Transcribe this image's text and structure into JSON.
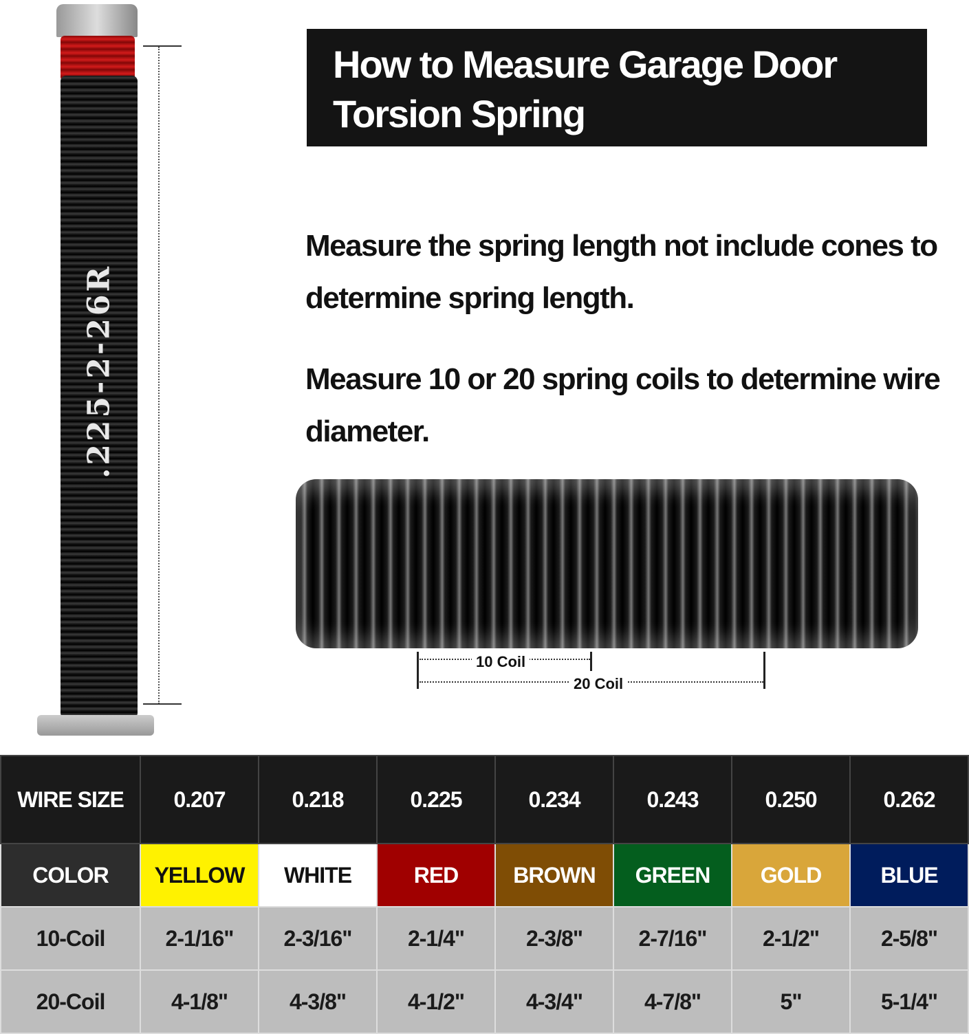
{
  "title": "How to Measure Garage Door Torsion Spring",
  "instructions": [
    "Measure the spring length not include cones to determine spring length.",
    "Measure 10 or 20 spring coils to determine wire diameter."
  ],
  "spring_label": ".225-2-26R",
  "coil_labels": {
    "ten": "10 Coil",
    "twenty": "20 Coil"
  },
  "table": {
    "row_headers": [
      "WIRE SIZE",
      "COLOR",
      "10-Coil",
      "20-Coil"
    ],
    "wire_sizes": [
      "0.207",
      "0.218",
      "0.225",
      "0.234",
      "0.243",
      "0.250",
      "0.262"
    ],
    "colors": [
      {
        "name": "YELLOW",
        "bg": "#fff200",
        "fg": "#111111"
      },
      {
        "name": "WHITE",
        "bg": "#ffffff",
        "fg": "#111111"
      },
      {
        "name": "RED",
        "bg": "#a00000",
        "fg": "#ffffff"
      },
      {
        "name": "BROWN",
        "bg": "#7f4d05",
        "fg": "#ffffff"
      },
      {
        "name": "GREEN",
        "bg": "#045e1e",
        "fg": "#ffffff"
      },
      {
        "name": "GOLD",
        "bg": "#d9a63a",
        "fg": "#ffffff"
      },
      {
        "name": "BLUE",
        "bg": "#001c5c",
        "fg": "#ffffff"
      }
    ],
    "ten_coil": [
      "2-1/16\"",
      "2-3/16\"",
      "2-1/4\"",
      "2-3/8\"",
      "2-7/16\"",
      "2-1/2\"",
      "2-5/8\""
    ],
    "twenty_coil": [
      "4-1/8\"",
      "4-3/8\"",
      "4-1/2\"",
      "4-3/4\"",
      "4-7/8\"",
      "5\"",
      "5-1/4\""
    ]
  }
}
